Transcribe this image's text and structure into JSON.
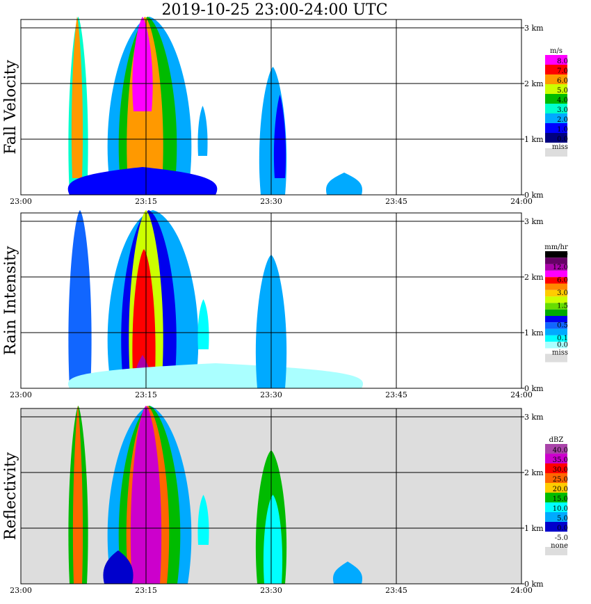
{
  "title": "2019-10-25   23:00-24:00 UTC",
  "chart_data": [
    {
      "type": "heatmap",
      "panel_label": "Fall Velocity",
      "x_ticks": [
        "23:00",
        "23:15",
        "23:30",
        "23:45",
        "24:00"
      ],
      "y_ticks": [
        "0 km",
        "1 km",
        "2 km",
        "3 km"
      ],
      "xlim": [
        "23:00",
        "24:00"
      ],
      "ylim_km": [
        0,
        3.2
      ],
      "background": "#ffffff",
      "legend": {
        "unit": "m/s",
        "entries": [
          {
            "label": "8.0",
            "color": "#ff00ff"
          },
          {
            "label": "7.0",
            "color": "#ff0000"
          },
          {
            "label": "6.0",
            "color": "#ff9900"
          },
          {
            "label": "5.0",
            "color": "#ccff00"
          },
          {
            "label": "4.0",
            "color": "#00bb00"
          },
          {
            "label": "3.0",
            "color": "#00ffcc"
          },
          {
            "label": "2.0",
            "color": "#00aaff"
          },
          {
            "label": "1.0",
            "color": "#0000ff"
          },
          {
            "label": "0.0",
            "color": "#000080"
          }
        ],
        "missing": {
          "label": "miss",
          "color": "#dddddd"
        }
      }
    },
    {
      "type": "heatmap",
      "panel_label": "Rain Intensity",
      "x_ticks": [
        "23:00",
        "23:15",
        "23:30",
        "23:45",
        "24:00"
      ],
      "y_ticks": [
        "0 km",
        "1 km",
        "2 km",
        "3 km"
      ],
      "xlim": [
        "23:00",
        "24:00"
      ],
      "ylim_km": [
        0,
        3.2
      ],
      "background": "#ffffff",
      "legend": {
        "unit": "mm/hr",
        "entries": [
          {
            "label": "48.0",
            "color": "#000000"
          },
          {
            "label": "",
            "color": "#660066"
          },
          {
            "label": "12.0",
            "color": "#aa00aa"
          },
          {
            "label": "",
            "color": "#ff00ff"
          },
          {
            "label": "6.0",
            "color": "#ff0000"
          },
          {
            "label": "",
            "color": "#ff8800"
          },
          {
            "label": "3.0",
            "color": "#ffcc00"
          },
          {
            "label": "",
            "color": "#ccff00"
          },
          {
            "label": "1.5",
            "color": "#66dd00"
          },
          {
            "label": "",
            "color": "#00aa00"
          },
          {
            "label": "",
            "color": "#0000ee"
          },
          {
            "label": "0.5",
            "color": "#1166ff"
          },
          {
            "label": "",
            "color": "#00aaff"
          },
          {
            "label": "0.1",
            "color": "#00ffff"
          },
          {
            "label": "0.0",
            "color": "#aaffff"
          }
        ],
        "missing": {
          "label": "miss",
          "color": "#dddddd"
        }
      }
    },
    {
      "type": "heatmap",
      "panel_label": "Reflectivity",
      "x_ticks": [
        "23:00",
        "23:15",
        "23:30",
        "23:45",
        "24:00"
      ],
      "y_ticks": [
        "0 km",
        "1 km",
        "2 km",
        "3 km"
      ],
      "xlim": [
        "23:00",
        "24:00"
      ],
      "ylim_km": [
        0,
        3.2
      ],
      "background": "#dddddd",
      "legend": {
        "unit": "dBZ",
        "entries": [
          {
            "label": "40.0",
            "color": "#aa44aa"
          },
          {
            "label": "35.0",
            "color": "#cc00cc"
          },
          {
            "label": "30.0",
            "color": "#ff0000"
          },
          {
            "label": "25.0",
            "color": "#ff6600"
          },
          {
            "label": "20.0",
            "color": "#ffcc00"
          },
          {
            "label": "15.0",
            "color": "#00bb00"
          },
          {
            "label": "10.0",
            "color": "#00ffff"
          },
          {
            "label": "5.0",
            "color": "#00aaff"
          },
          {
            "label": "0.0",
            "color": "#0000cc"
          },
          {
            "label": "-5.0",
            "color": "#ffffff"
          }
        ],
        "missing": {
          "label": "none",
          "color": "#dddddd"
        }
      }
    }
  ]
}
